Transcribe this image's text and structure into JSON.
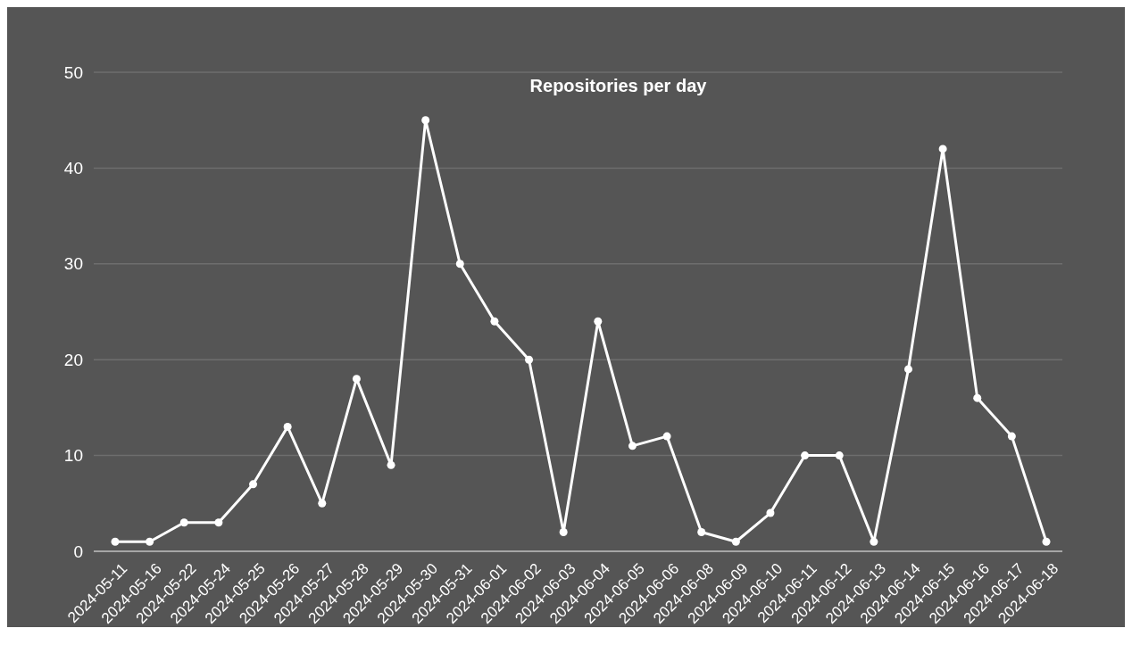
{
  "chart_data": {
    "type": "line",
    "title": "Repositories per day",
    "categories": [
      "2024-05-11",
      "2024-05-16",
      "2024-05-22",
      "2024-05-24",
      "2024-05-25",
      "2024-05-26",
      "2024-05-27",
      "2024-05-28",
      "2024-05-29",
      "2024-05-30",
      "2024-05-31",
      "2024-06-01",
      "2024-06-02",
      "2024-06-03",
      "2024-06-04",
      "2024-06-05",
      "2024-06-06",
      "2024-06-08",
      "2024-06-09",
      "2024-06-10",
      "2024-06-11",
      "2024-06-12",
      "2024-06-13",
      "2024-06-14",
      "2024-06-15",
      "2024-06-16",
      "2024-06-17",
      "2024-06-18"
    ],
    "series": [
      {
        "color": "#ffffff",
        "values": [
          1,
          1,
          3,
          3,
          7,
          13,
          5,
          18,
          9,
          45,
          30,
          24,
          20,
          2,
          24,
          11,
          12,
          2,
          1,
          4,
          10,
          10,
          1,
          19,
          42,
          16,
          12,
          1
        ]
      }
    ],
    "ylim": [
      0,
      50
    ],
    "yticks": [
      0,
      10,
      20,
      30,
      40,
      50
    ],
    "grid": "y",
    "marker": "circle",
    "line_style": "solid"
  }
}
